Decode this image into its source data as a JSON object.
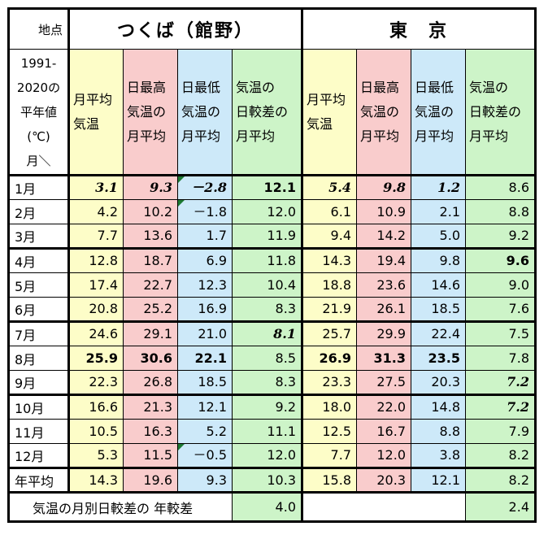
{
  "header": {
    "location_label": "地点",
    "station_1": "つくば（館野）",
    "station_2": "東　京",
    "corner_lines": [
      "1991-",
      "2020の",
      "平年値",
      "(℃)",
      "月＼"
    ],
    "col_headers": [
      [
        "月平均",
        "気温"
      ],
      [
        "日最高",
        "気温の",
        "月平均"
      ],
      [
        "日最低",
        "気温の",
        "月平均"
      ],
      [
        "気温の",
        "日較差の",
        "月平均"
      ]
    ]
  },
  "rows": [
    {
      "label": "1月",
      "v": [
        "3.1",
        "9.3",
        "－2.8",
        "12.1",
        "5.4",
        "9.8",
        "1.2",
        "8.6"
      ]
    },
    {
      "label": "2月",
      "v": [
        "4.2",
        "10.2",
        "－1.8",
        "12.0",
        "6.1",
        "10.9",
        "2.1",
        "8.8"
      ]
    },
    {
      "label": "3月",
      "v": [
        "7.7",
        "13.6",
        "1.7",
        "11.9",
        "9.4",
        "14.2",
        "5.0",
        "9.2"
      ]
    },
    {
      "label": "4月",
      "v": [
        "12.8",
        "18.7",
        "6.9",
        "11.8",
        "14.3",
        "19.4",
        "9.8",
        "9.6"
      ]
    },
    {
      "label": "5月",
      "v": [
        "17.4",
        "22.7",
        "12.3",
        "10.4",
        "18.8",
        "23.6",
        "14.6",
        "9.0"
      ]
    },
    {
      "label": "6月",
      "v": [
        "20.8",
        "25.2",
        "16.9",
        "8.3",
        "21.9",
        "26.1",
        "18.5",
        "7.6"
      ]
    },
    {
      "label": "7月",
      "v": [
        "24.6",
        "29.1",
        "21.0",
        "8.1",
        "25.7",
        "29.9",
        "22.4",
        "7.5"
      ]
    },
    {
      "label": "8月",
      "v": [
        "25.9",
        "30.6",
        "22.1",
        "8.5",
        "26.9",
        "31.3",
        "23.5",
        "7.8"
      ]
    },
    {
      "label": "9月",
      "v": [
        "22.3",
        "26.8",
        "18.5",
        "8.3",
        "23.3",
        "27.5",
        "20.3",
        "7.2"
      ]
    },
    {
      "label": "10月",
      "v": [
        "16.6",
        "21.3",
        "12.1",
        "9.2",
        "18.0",
        "22.0",
        "14.8",
        "7.2"
      ]
    },
    {
      "label": "11月",
      "v": [
        "10.5",
        "16.3",
        "5.2",
        "11.1",
        "12.5",
        "16.7",
        "8.8",
        "7.9"
      ]
    },
    {
      "label": "12月",
      "v": [
        "5.3",
        "11.5",
        "－0.5",
        "12.0",
        "7.7",
        "12.0",
        "3.8",
        "8.2"
      ]
    }
  ],
  "annual": {
    "label": "年平均",
    "v": [
      "14.3",
      "19.6",
      "9.3",
      "10.3",
      "15.8",
      "20.3",
      "12.1",
      "8.2"
    ]
  },
  "footer": {
    "label": "気温の月別日較差の 年較差",
    "tsukuba_value": "4.0",
    "tokyo_value": "2.4"
  },
  "colors": {
    "mean": "#fdfdc8",
    "max": "#f9cccc",
    "min": "#cde9f9",
    "range": "#cdf4c8",
    "marker": "#1d7a33"
  }
}
